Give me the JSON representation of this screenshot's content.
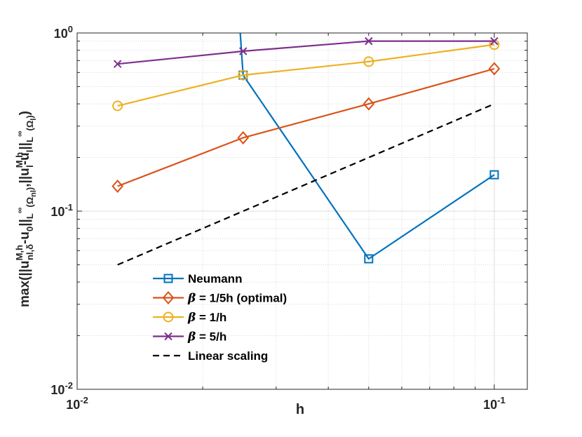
{
  "chart_data": {
    "type": "line",
    "xscale": "log",
    "yscale": "log",
    "xlim": [
      0.01,
      0.12
    ],
    "ylim": [
      0.01,
      1
    ],
    "xlabel": "h",
    "ylabel_parts": {
      "pre": "max(||u",
      "sup1": "M,h",
      "sub1": "nl,δ",
      "mid1": "-u",
      "sub2": "0",
      "mid2": "||",
      "sub3a": "L",
      "sup3": "∞",
      "sub3b": "(Ω",
      "sub3c": "nl",
      "sub3d": ")",
      "mid3": ",||u",
      "sup4": "M,h",
      "sub4": "l",
      "mid4": "-u",
      "sub5": "l",
      "mid5": "||",
      "sub6a": "L",
      "sup6": "∞",
      "sub6b": "(Ω",
      "sub6c": "l",
      "sub6d": ")",
      "end": ")"
    },
    "xticks": [
      {
        "base": "10",
        "exp": "-2",
        "value": 0.01
      },
      {
        "base": "10",
        "exp": "-1",
        "value": 0.1
      }
    ],
    "yticks": [
      {
        "base": "10",
        "exp": "-2",
        "value": 0.01
      },
      {
        "base": "10",
        "exp": "-1",
        "value": 0.1
      },
      {
        "base": "10",
        "exp": "0",
        "value": 1
      }
    ],
    "grid": true,
    "legend_position": "bottom-left-inside",
    "series": [
      {
        "name": "Neumann",
        "color": "#0072BD",
        "marker": "square",
        "x": [
          0.025,
          0.05,
          0.1
        ],
        "y": [
          0.58,
          0.054,
          0.16
        ],
        "extend_to_top": {
          "x": 0.0246
        }
      },
      {
        "name": "β = 1/5h (optimal)",
        "name_sym": "β",
        "name_rest": " = 1/5h (optimal)",
        "color": "#D95319",
        "marker": "diamond",
        "x": [
          0.0125,
          0.025,
          0.05,
          0.1
        ],
        "y": [
          0.138,
          0.258,
          0.4,
          0.63
        ]
      },
      {
        "name": "β = 1/h",
        "name_sym": "β",
        "name_rest": " = 1/h",
        "color": "#EDB120",
        "marker": "circle",
        "x": [
          0.0125,
          0.025,
          0.05,
          0.1
        ],
        "y": [
          0.39,
          0.58,
          0.69,
          0.86
        ]
      },
      {
        "name": "β = 5/h",
        "name_sym": "β",
        "name_rest": " = 5/h",
        "color": "#7E2F8E",
        "marker": "x",
        "x": [
          0.0125,
          0.025,
          0.05,
          0.1
        ],
        "y": [
          0.67,
          0.79,
          0.9,
          0.9
        ]
      },
      {
        "name": "Linear scaling",
        "color": "#000000",
        "marker": "none",
        "dash": true,
        "x": [
          0.0125,
          0.1
        ],
        "y": [
          0.05,
          0.4
        ]
      }
    ]
  }
}
